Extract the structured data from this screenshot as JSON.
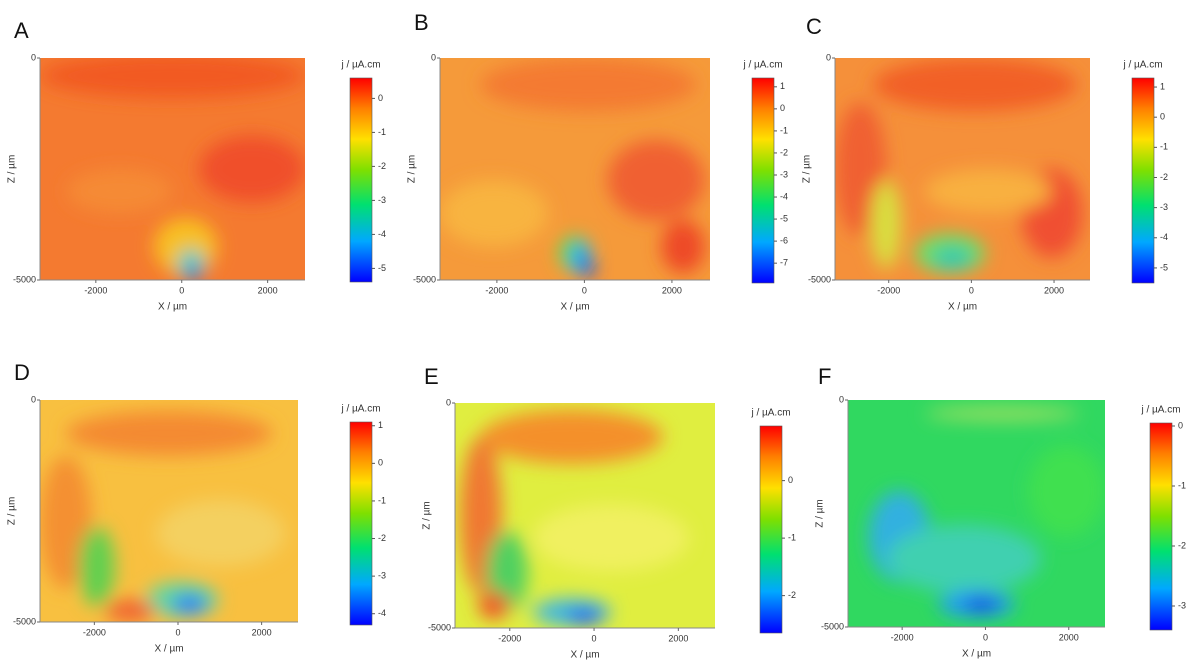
{
  "chart_data": [
    {
      "type": "heatmap",
      "panel_label": "A",
      "colorbar_label": "j / µA.cm",
      "xlabel": "X / µm",
      "ylabel": "Z / µm",
      "xlim": [
        -3300,
        2870
      ],
      "xticks": [
        -2000,
        0,
        2000
      ],
      "ylim": [
        -5000,
        0
      ],
      "yticks": [
        0,
        -5000
      ],
      "clim": [
        -5.4,
        0.6
      ],
      "cticks": [
        0,
        -1,
        -2,
        -3,
        -4,
        -5
      ]
    },
    {
      "type": "heatmap",
      "panel_label": "B",
      "colorbar_label": "j / µA.cm",
      "xlabel": "X / µm",
      "ylabel": "Z / µm",
      "xlim": [
        -3300,
        2870
      ],
      "xticks": [
        -2000,
        0,
        2000
      ],
      "ylim": [
        -5000,
        0
      ],
      "yticks": [
        0,
        -5000
      ],
      "clim": [
        -7.9,
        1.4
      ],
      "cticks": [
        1,
        0,
        -1,
        -2,
        -3,
        -4,
        -5,
        -6,
        -7
      ]
    },
    {
      "type": "heatmap",
      "panel_label": "C",
      "colorbar_label": "j / µA.cm",
      "xlabel": "X / µm",
      "ylabel": "Z / µm",
      "xlim": [
        -3300,
        2870
      ],
      "xticks": [
        -2000,
        0,
        2000
      ],
      "ylim": [
        -5000,
        0
      ],
      "yticks": [
        0,
        -5000
      ],
      "clim": [
        -5.5,
        1.3
      ],
      "cticks": [
        1,
        0,
        -1,
        -2,
        -3,
        -4,
        -5
      ]
    },
    {
      "type": "heatmap",
      "panel_label": "D",
      "colorbar_label": "j / µA.cm",
      "xlabel": "X / µm",
      "ylabel": "Z / µm",
      "xlim": [
        -3300,
        2870
      ],
      "xticks": [
        -2000,
        0,
        2000
      ],
      "ylim": [
        -5000,
        0
      ],
      "yticks": [
        0,
        -5000
      ],
      "clim": [
        -4.3,
        1.1
      ],
      "cticks": [
        1,
        0,
        -1,
        -2,
        -3,
        -4
      ]
    },
    {
      "type": "heatmap",
      "panel_label": "E",
      "colorbar_label": "j / µA.cm",
      "xlabel": "X / µm",
      "ylabel": "Z / µm",
      "xlim": [
        -3300,
        2870
      ],
      "xticks": [
        -2000,
        0,
        2000
      ],
      "ylim": [
        -5000,
        0
      ],
      "yticks": [
        0,
        -5000
      ],
      "clim": [
        -2.65,
        0.95
      ],
      "cticks": [
        0,
        -1,
        -2
      ]
    },
    {
      "type": "heatmap",
      "panel_label": "F",
      "colorbar_label": "j / µA.cm",
      "xlabel": "X / µm",
      "ylabel": "Z / µm",
      "xlim": [
        -3300,
        2870
      ],
      "xticks": [
        -2000,
        0,
        2000
      ],
      "ylim": [
        -5000,
        0
      ],
      "yticks": [
        0,
        -5000
      ],
      "clim": [
        -3.4,
        0.05
      ],
      "cticks": [
        0,
        -1,
        -2,
        -3
      ]
    }
  ]
}
